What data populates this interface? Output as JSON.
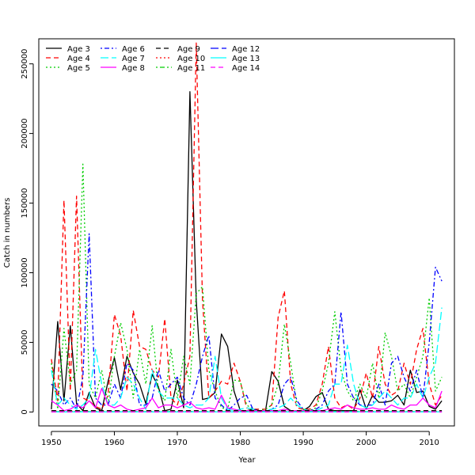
{
  "chart_data": {
    "type": "line",
    "title": "",
    "xlabel": "Year",
    "ylabel": "Catch in numbers",
    "xlim": [
      1948,
      2014
    ],
    "ylim": [
      -10000,
      268000
    ],
    "xticks": [
      1950,
      1960,
      1970,
      1980,
      1990,
      2000,
      2010
    ],
    "yticks": [
      0,
      50000,
      100000,
      150000,
      200000,
      250000
    ],
    "grid": false,
    "legend_position": "top-left",
    "x": [
      1950,
      1951,
      1952,
      1953,
      1954,
      1955,
      1956,
      1957,
      1958,
      1959,
      1960,
      1961,
      1962,
      1963,
      1964,
      1965,
      1966,
      1967,
      1968,
      1969,
      1970,
      1971,
      1972,
      1973,
      1974,
      1975,
      1976,
      1977,
      1978,
      1979,
      1980,
      1981,
      1982,
      1983,
      1984,
      1985,
      1986,
      1987,
      1988,
      1989,
      1990,
      1991,
      1992,
      1993,
      1994,
      1995,
      1996,
      1997,
      1998,
      1999,
      2000,
      2001,
      2002,
      2003,
      2004,
      2005,
      2006,
      2007,
      2008,
      2009,
      2010,
      2011,
      2012
    ],
    "series": [
      {
        "name": "Age 3",
        "color": "#000000",
        "dash": "solid",
        "values": [
          2000,
          65000,
          8000,
          62000,
          6000,
          1000,
          14000,
          3000,
          1000,
          22000,
          39000,
          16000,
          40000,
          28000,
          20000,
          6000,
          27000,
          18000,
          1000,
          2000,
          23000,
          3000,
          230000,
          80000,
          9000,
          10000,
          14000,
          56000,
          47000,
          15000,
          1000,
          1000,
          2000,
          1000,
          1000,
          29000,
          22000,
          4000,
          1000,
          1000,
          1000,
          4000,
          11000,
          14000,
          2000,
          1000,
          1000,
          1000,
          1000,
          16000,
          2000,
          12000,
          7000,
          7000,
          8000,
          12000,
          5000,
          30000,
          14000,
          15000,
          4000,
          2000,
          8000
        ]
      },
      {
        "name": "Age 4",
        "color": "#ff0000",
        "dash": "dashed",
        "values": [
          38000,
          8000,
          152000,
          15000,
          155000,
          10000,
          8000,
          4000,
          2000,
          12000,
          70000,
          55000,
          15000,
          73000,
          47000,
          45000,
          30000,
          25000,
          67000,
          10000,
          5000,
          20000,
          40000,
          265000,
          80000,
          10000,
          15000,
          22000,
          20000,
          35000,
          22000,
          3000,
          2000,
          2000,
          2000,
          5000,
          68000,
          87000,
          20000,
          3000,
          2000,
          2000,
          5000,
          20000,
          47000,
          10000,
          3000,
          5000,
          2000,
          10000,
          28000,
          10000,
          47000,
          20000,
          12000,
          15000,
          35000,
          20000,
          45000,
          60000,
          20000,
          5000,
          12000
        ]
      },
      {
        "name": "Age 5",
        "color": "#00cd00",
        "dash": "dotted",
        "values": [
          35000,
          2000,
          60000,
          20000,
          30000,
          178000,
          20000,
          10000,
          30000,
          5000,
          40000,
          64000,
          45000,
          10000,
          45000,
          20000,
          62000,
          15000,
          8000,
          45000,
          10000,
          40000,
          20000,
          85000,
          90000,
          30000,
          15000,
          3000,
          2000,
          23000,
          22000,
          5000,
          2000,
          1000,
          2000,
          5000,
          20000,
          63000,
          35000,
          5000,
          2000,
          1000,
          3000,
          15000,
          35000,
          72000,
          30000,
          15000,
          8000,
          20000,
          10000,
          35000,
          10000,
          57000,
          40000,
          15000,
          20000,
          10000,
          25000,
          40000,
          82000,
          15000,
          25000
        ]
      },
      {
        "name": "Age 6",
        "color": "#0000ff",
        "dash": "dotdash",
        "values": [
          20000,
          15000,
          5000,
          10000,
          2000,
          25000,
          128000,
          10000,
          5000,
          5000,
          20000,
          10000,
          35000,
          30000,
          5000,
          5000,
          10000,
          30000,
          15000,
          20000,
          25000,
          10000,
          5000,
          20000,
          40000,
          55000,
          10000,
          5000,
          1000,
          5000,
          10000,
          12000,
          2000,
          1000,
          1000,
          2000,
          5000,
          20000,
          25000,
          8000,
          2000,
          1000,
          2000,
          5000,
          15000,
          20000,
          72000,
          20000,
          10000,
          5000,
          5000,
          5000,
          20000,
          5000,
          35000,
          40000,
          25000,
          15000,
          30000,
          10000,
          50000,
          104000,
          94000
        ]
      },
      {
        "name": "Age 7",
        "color": "#00ffff",
        "dash": "longdash",
        "values": [
          30000,
          5000,
          10000,
          5000,
          2000,
          5000,
          10000,
          45000,
          20000,
          5000,
          5000,
          10000,
          25000,
          20000,
          10000,
          2000,
          30000,
          15000,
          10000,
          10000,
          10000,
          5000,
          3000,
          5000,
          5000,
          10000,
          40000,
          10000,
          2000,
          1000,
          2000,
          3000,
          2000,
          1000,
          1000,
          2000,
          3000,
          5000,
          10000,
          5000,
          2000,
          1000,
          1000,
          3000,
          5000,
          20000,
          20000,
          48000,
          20000,
          5000,
          3000,
          5000,
          10000,
          15000,
          10000,
          5000,
          10000,
          10000,
          20000,
          10000,
          25000,
          35000,
          75000
        ]
      },
      {
        "name": "Age 8",
        "color": "#ff00ff",
        "dash": "solid",
        "values": [
          8000,
          5000,
          1000,
          2000,
          5000,
          3000,
          8000,
          3000,
          17000,
          5000,
          3000,
          5000,
          2000,
          1000,
          2000,
          3000,
          10000,
          3000,
          5000,
          5000,
          3000,
          5000,
          7000,
          3000,
          2000,
          3000,
          2000,
          12000,
          3000,
          2000,
          1000,
          1000,
          1000,
          1000,
          1000,
          1000,
          1000,
          2000,
          1000,
          1000,
          1000,
          1000,
          1000,
          1000,
          2000,
          3000,
          2000,
          5000,
          3000,
          2000,
          2000,
          3000,
          2000,
          2000,
          5000,
          3000,
          2000,
          5000,
          5000,
          10000,
          5000,
          3000,
          15000
        ]
      },
      {
        "name": "Age 9",
        "color": "#000000",
        "dash": "dashed",
        "values": [
          1000,
          1000,
          1000,
          1000,
          1000,
          1000,
          1000,
          1000,
          1000,
          1000,
          1000,
          1000,
          1000,
          1000,
          1000,
          1000,
          1000,
          1000,
          1000,
          1000,
          1000,
          1000,
          1000,
          1000,
          1000,
          1000,
          1000,
          1000,
          1000,
          1000,
          1000,
          1000,
          1000,
          1000,
          1000,
          1000,
          1000,
          1000,
          1000,
          1000,
          1000,
          1000,
          1000,
          1000,
          1000,
          1000,
          1000,
          1000,
          1000,
          1000,
          1000,
          1000,
          1000,
          1000,
          1000,
          1000,
          1000,
          1000,
          1000,
          1000,
          1000,
          1000,
          1000
        ]
      },
      {
        "name": "Age 10",
        "color": "#ff0000",
        "dash": "dotted",
        "values": [
          500,
          500,
          500,
          500,
          500,
          500,
          500,
          500,
          500,
          500,
          500,
          500,
          500,
          500,
          500,
          500,
          500,
          500,
          500,
          500,
          500,
          500,
          500,
          500,
          500,
          500,
          500,
          500,
          500,
          500,
          500,
          500,
          500,
          500,
          500,
          500,
          500,
          500,
          500,
          500,
          500,
          500,
          500,
          500,
          500,
          500,
          500,
          500,
          500,
          500,
          500,
          500,
          500,
          500,
          500,
          500,
          500,
          500,
          500,
          500,
          500,
          500,
          500
        ]
      },
      {
        "name": "Age 11",
        "color": "#00cd00",
        "dash": "dotdash",
        "values": [
          300,
          300,
          300,
          300,
          300,
          300,
          300,
          300,
          300,
          300,
          300,
          300,
          300,
          300,
          300,
          300,
          300,
          300,
          300,
          300,
          300,
          300,
          300,
          300,
          300,
          300,
          300,
          300,
          300,
          300,
          300,
          300,
          300,
          300,
          300,
          300,
          300,
          300,
          300,
          300,
          300,
          300,
          300,
          300,
          300,
          300,
          300,
          300,
          300,
          300,
          300,
          300,
          300,
          300,
          300,
          300,
          300,
          300,
          300,
          300,
          300,
          300,
          300
        ]
      },
      {
        "name": "Age 12",
        "color": "#0000ff",
        "dash": "longdash",
        "values": [
          200,
          200,
          200,
          200,
          200,
          200,
          200,
          200,
          200,
          200,
          200,
          200,
          200,
          200,
          200,
          200,
          200,
          200,
          200,
          200,
          200,
          200,
          200,
          200,
          200,
          200,
          200,
          200,
          200,
          200,
          200,
          200,
          200,
          200,
          200,
          200,
          200,
          200,
          200,
          200,
          200,
          200,
          200,
          200,
          200,
          200,
          200,
          200,
          200,
          200,
          200,
          200,
          200,
          200,
          200,
          200,
          200,
          200,
          200,
          200,
          200,
          200,
          200
        ]
      },
      {
        "name": "Age 13",
        "color": "#00ffff",
        "dash": "solid",
        "values": [
          100,
          100,
          100,
          100,
          100,
          100,
          100,
          100,
          100,
          100,
          100,
          100,
          100,
          100,
          100,
          100,
          100,
          100,
          100,
          100,
          100,
          100,
          100,
          100,
          100,
          100,
          100,
          100,
          100,
          100,
          100,
          100,
          100,
          100,
          100,
          100,
          100,
          100,
          100,
          100,
          100,
          100,
          100,
          100,
          100,
          100,
          100,
          100,
          100,
          100,
          100,
          100,
          100,
          100,
          100,
          100,
          100,
          100,
          100,
          100,
          100,
          100,
          100
        ]
      },
      {
        "name": "Age 14",
        "color": "#ff00ff",
        "dash": "dashed",
        "values": [
          50,
          50,
          50,
          50,
          50,
          50,
          50,
          50,
          50,
          50,
          50,
          50,
          50,
          50,
          50,
          50,
          50,
          50,
          50,
          50,
          50,
          50,
          50,
          50,
          50,
          50,
          50,
          50,
          50,
          50,
          50,
          50,
          50,
          50,
          50,
          50,
          50,
          50,
          50,
          50,
          50,
          50,
          50,
          50,
          50,
          50,
          50,
          50,
          50,
          50,
          50,
          50,
          50,
          50,
          50,
          50,
          50,
          50,
          50,
          50,
          50,
          50,
          50
        ]
      }
    ]
  }
}
